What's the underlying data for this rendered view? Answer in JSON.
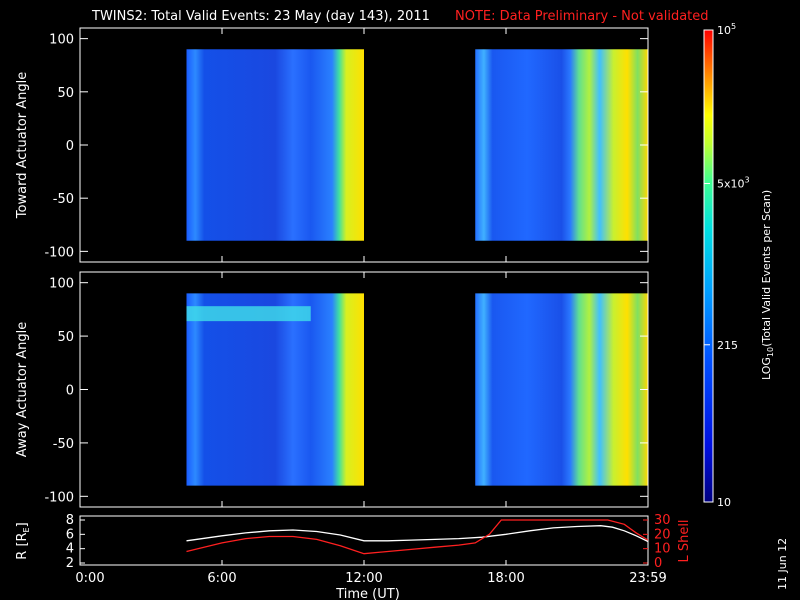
{
  "header": {
    "title": "TWINS2: Total Valid Events: 23 May (day 143), 2011",
    "note": "NOTE: Data Preliminary - Not validated"
  },
  "footer": {
    "date_stamp": "11 Jun 12",
    "xlabel": "Time (UT)"
  },
  "colors": {
    "background": "#000000",
    "axes": "#ffffff",
    "note": "#ff2020",
    "r_line": "#ffffff",
    "lshell_line": "#ff2020"
  },
  "chart_data": [
    {
      "type": "heatmap",
      "ylabel": "Toward Actuator Angle",
      "ylim": [
        -110,
        110
      ],
      "yticks": [
        "100",
        "50",
        "0",
        "-50",
        "-100"
      ],
      "xlim": [
        0,
        24
      ],
      "data_segments": [
        {
          "x_start": 4.5,
          "x_end": 12.0,
          "y_range": [
            -90,
            90
          ]
        },
        {
          "x_start": 16.7,
          "x_end": 24.0,
          "y_range": [
            -90,
            90
          ]
        }
      ],
      "color_scale": "log10 events",
      "notes": "blue background with yellow band near segment ends"
    },
    {
      "type": "heatmap",
      "ylabel": "Away Actuator Angle",
      "ylim": [
        -110,
        110
      ],
      "yticks": [
        "100",
        "50",
        "0",
        "-50",
        "-100"
      ],
      "xlim": [
        0,
        24
      ],
      "data_segments": [
        {
          "x_start": 4.5,
          "x_end": 12.0,
          "y_range": [
            -90,
            90
          ]
        },
        {
          "x_start": 16.7,
          "x_end": 24.0,
          "y_range": [
            -90,
            90
          ]
        }
      ],
      "color_scale": "log10 events"
    },
    {
      "type": "line",
      "xlabel": "Time (UT)",
      "xticks": [
        "0:00",
        "6:00",
        "12:00",
        "18:00",
        "23:59"
      ],
      "xtick_values": [
        0,
        6,
        12,
        18,
        24
      ],
      "xlim": [
        0,
        24
      ],
      "ylabel_left": "R [R",
      "ylabel_left_sub": "E",
      "ylabel_left_close": "]",
      "yticks_left": [
        "8",
        "6",
        "4",
        "2"
      ],
      "ylim_left": [
        2,
        8
      ],
      "ylabel_right": "L Shell",
      "yticks_right": [
        "30",
        "20",
        "10",
        "0"
      ],
      "ylim_right": [
        0,
        30
      ],
      "series": [
        {
          "name": "R",
          "color": "#ffffff",
          "x": [
            4.5,
            6,
            7,
            8,
            9,
            10,
            11,
            12,
            13,
            14,
            15,
            16,
            17,
            18,
            19,
            20,
            21,
            22,
            22.5,
            23,
            23.5,
            24
          ],
          "y": [
            5.1,
            5.8,
            6.2,
            6.5,
            6.6,
            6.4,
            5.9,
            5.1,
            5.1,
            5.2,
            5.3,
            5.4,
            5.6,
            6.0,
            6.5,
            6.9,
            7.1,
            7.2,
            7.0,
            6.5,
            5.8,
            5.0
          ]
        },
        {
          "name": "L Shell",
          "color": "#ff2020",
          "x": [
            4.5,
            6,
            7,
            8,
            9,
            10,
            11,
            12,
            13,
            14,
            15,
            16,
            16.7,
            17.3,
            17.8,
            22.3,
            23.0,
            23.5,
            24
          ],
          "y": [
            8,
            14,
            17,
            18.5,
            18.5,
            16.5,
            12,
            6.5,
            8,
            9.5,
            11,
            12.5,
            14,
            20,
            30,
            30,
            27,
            21,
            16
          ]
        }
      ]
    }
  ],
  "colorbar": {
    "label_main": "LOG",
    "label_sub": "10",
    "label_rest": "(Total Valid Events per Scan)",
    "ticks": [
      {
        "label": "10",
        "value": 10
      },
      {
        "label": "215",
        "value": 215
      },
      {
        "label_base": "5x10",
        "label_exp": "3",
        "value": 5000
      },
      {
        "label_base": "10",
        "label_exp": "5",
        "value": 100000
      }
    ],
    "range": [
      10,
      100000
    ]
  }
}
